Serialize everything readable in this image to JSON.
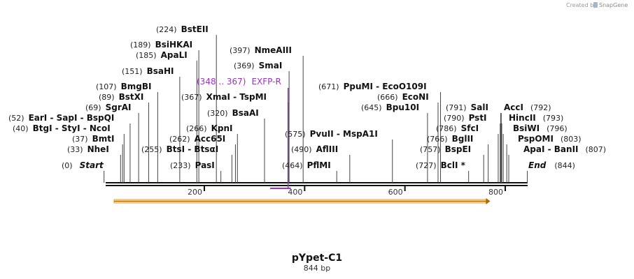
{
  "credit": {
    "prefix": "Created by",
    "brand": "SnapGene"
  },
  "map": {
    "title": "pYpet-C1",
    "subtitle": "844 bp",
    "length_bp": 844,
    "ticks": [
      {
        "bp": 200,
        "label": "200"
      },
      {
        "bp": 400,
        "label": "400"
      },
      {
        "bp": 600,
        "label": "600"
      },
      {
        "bp": 800,
        "label": "800"
      }
    ],
    "feature_arrow": {
      "start_bp": 20,
      "end_bp": 770,
      "color": "#e8a33d"
    },
    "primer": {
      "start_bp": 348,
      "end_bp": 367,
      "color": "#9933cc"
    }
  },
  "labels": [
    {
      "id": "bsteii",
      "pos": "(224)",
      "name": "BstEII",
      "cut": 224
    },
    {
      "id": "bsihkai",
      "pos": "(189)",
      "name": "BsiHKAI",
      "cut": 189
    },
    {
      "id": "apali",
      "pos": "(185)",
      "name": "ApaLI",
      "cut": 185
    },
    {
      "id": "bsahi",
      "pos": "(151)",
      "name": "BsaHI",
      "cut": 151
    },
    {
      "id": "bmgbi",
      "pos": "(107)",
      "name": "BmgBI",
      "cut": 107
    },
    {
      "id": "bstxi",
      "pos": "(89)",
      "name": "BstXI",
      "cut": 89
    },
    {
      "id": "sgrai",
      "pos": "(69)",
      "name": "SgrAI",
      "cut": 69
    },
    {
      "id": "eari",
      "pos": "(52)",
      "name": "EarI  - SapI  - BspQI",
      "cut": 52
    },
    {
      "id": "btgi",
      "pos": "(40)",
      "name": "BtgI  - StyI  - NcoI",
      "cut": 40
    },
    {
      "id": "bmti",
      "pos": "(37)",
      "name": "BmtI",
      "cut": 37
    },
    {
      "id": "nhei",
      "pos": "(33)",
      "name": "NheI",
      "cut": 33
    },
    {
      "id": "start",
      "pos": "(0)",
      "name": "Start",
      "cut": 0,
      "italic": true
    },
    {
      "id": "nmeaiii",
      "pos": "(397)",
      "name": "NmeAIII",
      "cut": 397
    },
    {
      "id": "smai",
      "pos": "(369)",
      "name": "SmaI",
      "cut": 369
    },
    {
      "id": "xmai",
      "pos": "(367)",
      "name": "XmaI  - TspMI",
      "cut": 367
    },
    {
      "id": "bsaai",
      "pos": "(320)",
      "name": "BsaAI",
      "cut": 320
    },
    {
      "id": "kpni",
      "pos": "(266)",
      "name": "KpnI",
      "cut": 266
    },
    {
      "id": "acc65i",
      "pos": "(262)",
      "name": "Acc65I",
      "cut": 262
    },
    {
      "id": "bstsi",
      "pos": "(255)",
      "name": "BtsI  - BtsαI",
      "cut": 255
    },
    {
      "id": "pasi",
      "pos": "(233)",
      "name": "PasI",
      "cut": 233
    },
    {
      "id": "pvuii",
      "pos": "(575)",
      "name": "PvuII  - MspA1I",
      "cut": 575
    },
    {
      "id": "afliii",
      "pos": "(490)",
      "name": "AflIII",
      "cut": 490
    },
    {
      "id": "pflmi",
      "pos": "(464)",
      "name": "PflMI",
      "cut": 464
    },
    {
      "id": "ppumi",
      "pos": "(671)",
      "name": "PpuMI  - EcoO109I",
      "cut": 671
    },
    {
      "id": "econi",
      "pos": "(666)",
      "name": "EcoNI",
      "cut": 666
    },
    {
      "id": "bpu10i",
      "pos": "(645)",
      "name": "Bpu10I",
      "cut": 645
    },
    {
      "id": "bcli",
      "pos": "(727)",
      "name": "BclI *",
      "cut": 727
    },
    {
      "id": "sali",
      "pos": "(791)",
      "name": "SalI",
      "cut": 791
    },
    {
      "id": "acci",
      "pos": "(792)",
      "name": "AccI",
      "cut": 792,
      "pos_after": true
    },
    {
      "id": "psti",
      "pos": "(790)",
      "name": "PstI",
      "cut": 790
    },
    {
      "id": "hincii",
      "pos": "(793)",
      "name": "HincII",
      "cut": 793,
      "pos_after": true
    },
    {
      "id": "sfci",
      "pos": "(786)",
      "name": "SfcI",
      "cut": 786
    },
    {
      "id": "bsiwi",
      "pos": "(796)",
      "name": "BsiWI",
      "cut": 796,
      "pos_after": true
    },
    {
      "id": "bglii",
      "pos": "(766)",
      "name": "BglII",
      "cut": 766
    },
    {
      "id": "psppomi",
      "pos": "(803)",
      "name": "PspOMI",
      "cut": 803,
      "pos_after": true
    },
    {
      "id": "bspei",
      "pos": "(757)",
      "name": "BspEI",
      "cut": 757
    },
    {
      "id": "apai",
      "pos": "(807)",
      "name": "ApaI  - BanII",
      "cut": 807,
      "pos_after": true
    },
    {
      "id": "end",
      "pos": "(844)",
      "name": "End",
      "cut": 844,
      "italic": true,
      "pos_after": true
    }
  ],
  "primer_label": {
    "range": "(348 .. 367)",
    "name": "EXFP-R"
  }
}
